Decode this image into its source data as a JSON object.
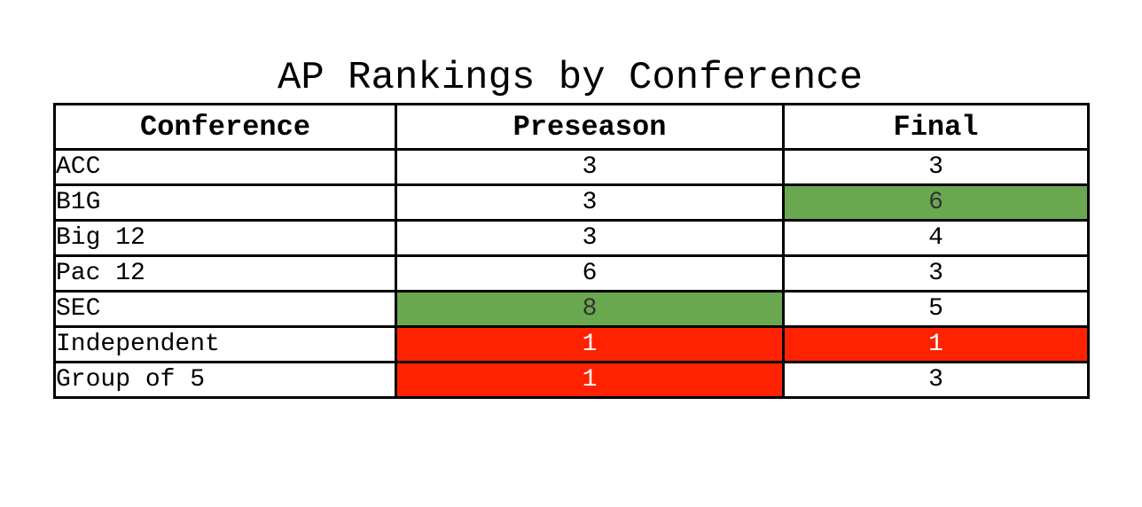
{
  "chart_data": {
    "type": "table",
    "title": "AP Rankings by Conference",
    "columns": [
      "Conference",
      "Preseason",
      "Final"
    ],
    "rows": [
      {
        "conference": "ACC",
        "preseason": "3",
        "final": "3",
        "preseason_status": "none",
        "final_status": "none"
      },
      {
        "conference": "B1G",
        "preseason": "3",
        "final": "6",
        "preseason_status": "none",
        "final_status": "high"
      },
      {
        "conference": "Big 12",
        "preseason": "3",
        "final": "4",
        "preseason_status": "none",
        "final_status": "none"
      },
      {
        "conference": "Pac 12",
        "preseason": "6",
        "final": "3",
        "preseason_status": "none",
        "final_status": "none"
      },
      {
        "conference": "SEC",
        "preseason": "8",
        "final": "5",
        "preseason_status": "high",
        "final_status": "none"
      },
      {
        "conference": "Independent",
        "preseason": "1",
        "final": "1",
        "preseason_status": "low",
        "final_status": "low"
      },
      {
        "conference": "Group of 5",
        "preseason": "1",
        "final": "3",
        "preseason_status": "low",
        "final_status": "none"
      }
    ]
  },
  "colors": {
    "high": "#6aa84f",
    "low": "#ff2200",
    "none": "#ffffff",
    "border": "#000000"
  }
}
